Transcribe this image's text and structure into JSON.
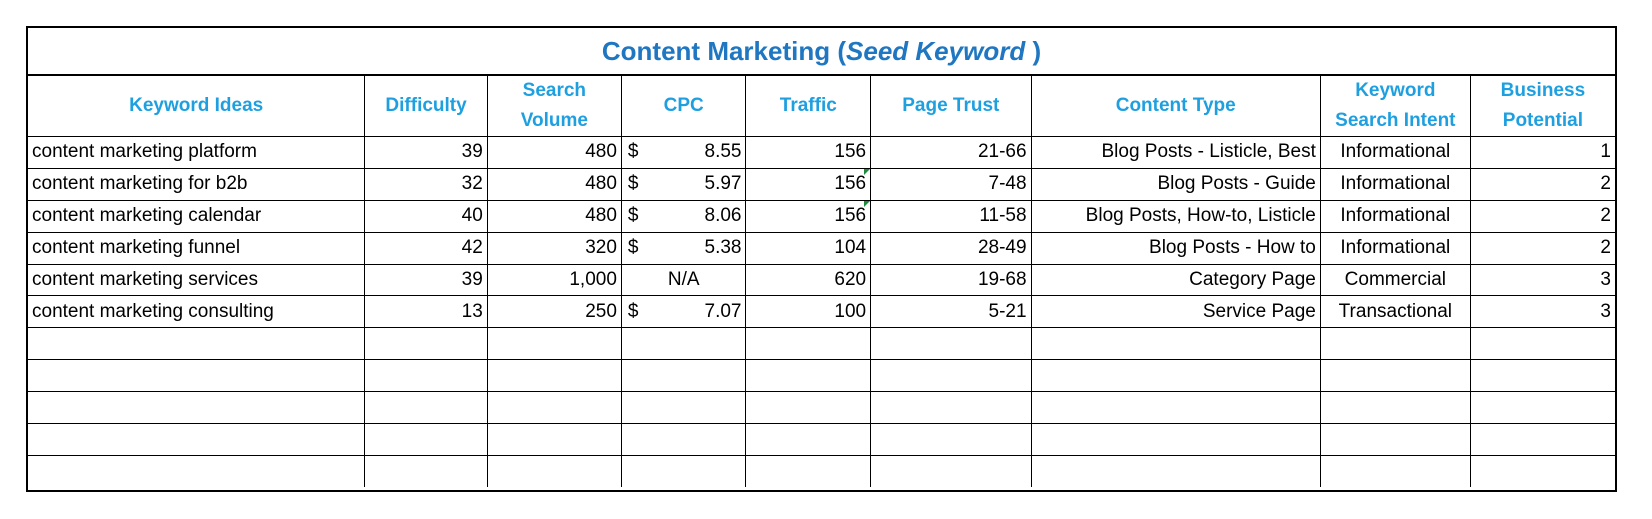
{
  "title": {
    "main": "Content Marketing",
    "open_paren": "(",
    "seed": "Seed Keyword",
    "close_paren": ")"
  },
  "headers": [
    "Keyword Ideas",
    "Difficulty",
    "Search Volume",
    "CPC",
    "Traffic",
    "Page Trust",
    "Content Type",
    "Keyword Search Intent",
    "Business Potential"
  ],
  "rows": [
    {
      "keyword": "content marketing platform",
      "difficulty": "39",
      "volume": "480",
      "cpc_symbol": "$",
      "cpc": "8.55",
      "traffic": "156",
      "page_trust": "21-66",
      "content_type": "Blog Posts - Listicle, Best",
      "intent": "Informational",
      "potential": "1"
    },
    {
      "keyword": "content marketing for b2b",
      "difficulty": "32",
      "volume": "480",
      "cpc_symbol": "$",
      "cpc": "5.97",
      "traffic": "156",
      "page_trust": "7-48",
      "content_type": "Blog Posts - Guide",
      "intent": "Informational",
      "potential": "2"
    },
    {
      "keyword": "content marketing calendar",
      "difficulty": "40",
      "volume": "480",
      "cpc_symbol": "$",
      "cpc": "8.06",
      "traffic": "156",
      "page_trust": "11-58",
      "content_type": "Blog  Posts,  How-to, Listicle",
      "intent": "Informational",
      "potential": "2"
    },
    {
      "keyword": "content marketing funnel",
      "difficulty": "42",
      "volume": "320",
      "cpc_symbol": "$",
      "cpc": "5.38",
      "traffic": "104",
      "page_trust": "28-49",
      "content_type": "Blog Posts - How to",
      "intent": "Informational",
      "potential": "2"
    },
    {
      "keyword": "content marketing services",
      "difficulty": "39",
      "volume": "1,000",
      "cpc_symbol": "",
      "cpc": "N/A",
      "traffic": "620",
      "page_trust": "19-68",
      "content_type": "Category Page",
      "intent": "Commercial",
      "potential": "3"
    },
    {
      "keyword": "content marketing consulting",
      "difficulty": "13",
      "volume": "250",
      "cpc_symbol": "$",
      "cpc": "7.07",
      "traffic": "100",
      "page_trust": "5-21",
      "content_type": "Service Page",
      "intent": "Transactional",
      "potential": "3"
    }
  ],
  "empty_rows": 5,
  "colors": {
    "title": "#1f76c1",
    "header": "#1ea0e0",
    "comment_flag": "#1a8c3c"
  }
}
